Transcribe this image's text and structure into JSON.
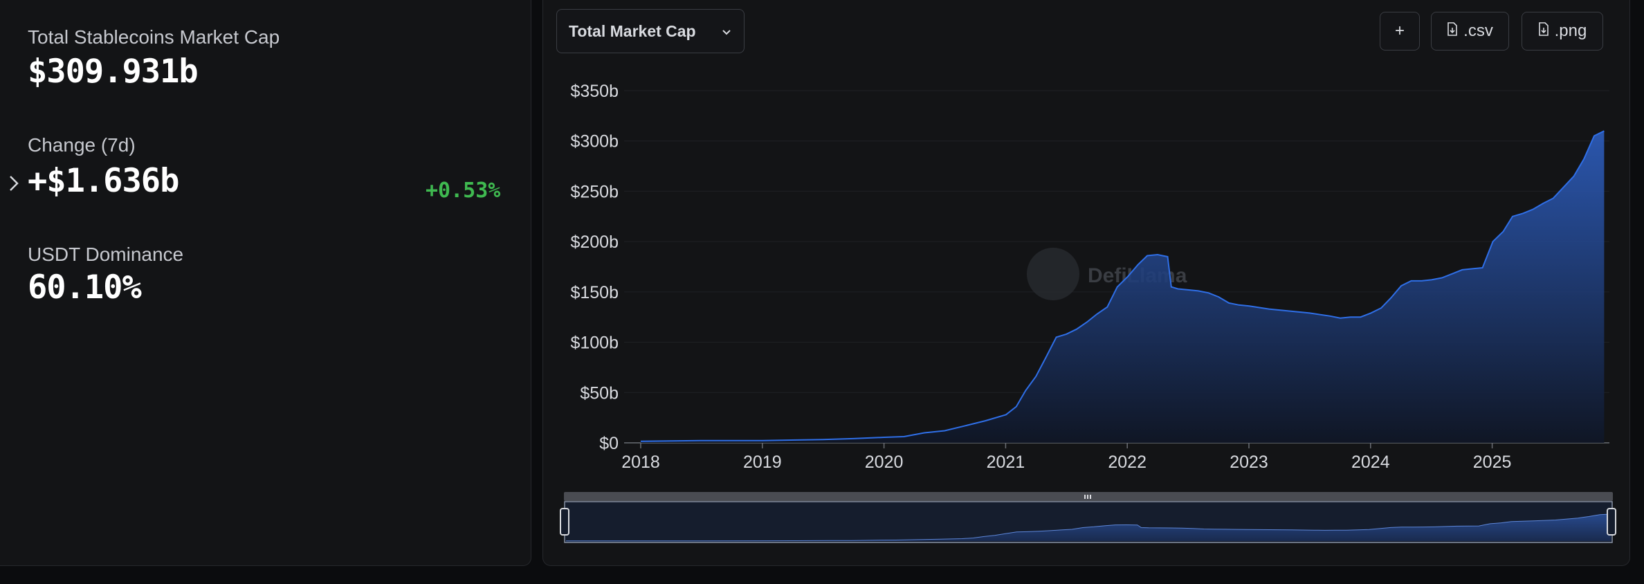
{
  "stats": {
    "market_cap_label": "Total Stablecoins Market Cap",
    "market_cap_value": "$309.931b",
    "change_label": "Change (7d)",
    "change_value": "+$1.636b",
    "change_pct": "+0.53%",
    "dominance_label": "USDT Dominance",
    "dominance_value": "60.10%"
  },
  "toolbar": {
    "metric_selected": "Total Market Cap",
    "add_label": "+",
    "csv_label": ".csv",
    "png_label": ".png"
  },
  "watermark": "DefiLlama",
  "colors": {
    "accent": "#2f6fe8",
    "positive": "#3fb950",
    "background": "#131416"
  },
  "chart_data": {
    "type": "area",
    "series": [
      {
        "x": [
          "2018-01-01",
          "2018-07-01",
          "2019-01-01",
          "2019-07-01",
          "2019-10-01",
          "2020-01-01",
          "2020-03-01",
          "2020-05-01",
          "2020-07-01",
          "2020-09-01",
          "2020-11-01",
          "2021-01-01",
          "2021-02-01",
          "2021-03-01",
          "2021-04-01",
          "2021-05-01",
          "2021-06-01",
          "2021-07-01",
          "2021-08-01",
          "2021-09-01",
          "2021-10-01",
          "2021-11-01",
          "2021-12-01",
          "2022-01-01",
          "2022-02-01",
          "2022-03-01",
          "2022-04-01",
          "2022-05-01",
          "2022-05-12",
          "2022-06-01",
          "2022-07-01",
          "2022-08-01",
          "2022-09-01",
          "2022-10-01",
          "2022-11-01",
          "2022-12-01",
          "2023-01-01",
          "2023-03-01",
          "2023-05-01",
          "2023-07-01",
          "2023-09-01",
          "2023-10-01",
          "2023-11-01",
          "2023-12-01",
          "2024-01-01",
          "2024-02-01",
          "2024-03-01",
          "2024-04-01",
          "2024-05-01",
          "2024-06-01",
          "2024-07-01",
          "2024-08-01",
          "2024-09-01",
          "2024-10-01",
          "2024-11-01",
          "2024-12-01",
          "2025-01-01",
          "2025-02-01",
          "2025-03-01",
          "2025-04-01",
          "2025-05-01",
          "2025-06-01",
          "2025-07-01",
          "2025-08-01",
          "2025-09-01",
          "2025-10-01",
          "2025-11-01",
          "2025-12-01"
        ],
        "y": [
          1.5,
          2.2,
          2.3,
          3.2,
          4.2,
          5.5,
          6.2,
          10,
          12,
          17,
          22,
          28,
          36,
          52,
          66,
          85,
          105,
          108,
          113,
          120,
          128,
          135,
          155,
          165,
          177,
          186,
          187,
          185,
          155,
          153,
          152,
          151,
          149,
          145,
          139,
          137,
          136,
          133,
          131,
          129,
          126,
          124,
          125,
          125,
          129,
          134,
          144,
          156,
          161,
          161,
          162,
          164,
          168,
          172,
          173,
          174,
          200,
          210,
          225,
          228,
          232,
          238,
          243,
          254,
          265,
          282,
          305,
          309.9
        ]
      }
    ],
    "xticks": [
      "2018",
      "2019",
      "2020",
      "2021",
      "2022",
      "2023",
      "2024",
      "2025"
    ],
    "yticks": [
      "$0",
      "$50b",
      "$100b",
      "$150b",
      "$200b",
      "$250b",
      "$300b",
      "$350b"
    ],
    "ylim": [
      0,
      350
    ],
    "grid": true,
    "legend": "none"
  }
}
